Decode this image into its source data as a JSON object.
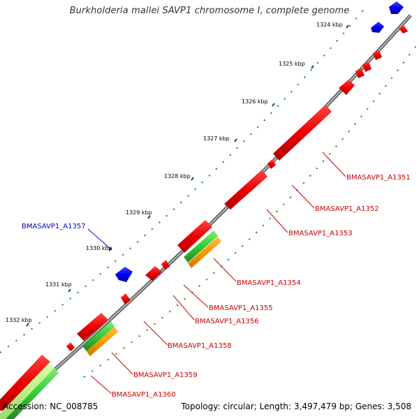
{
  "title": "Burkholderia mallei SAVP1 chromosome I, complete genome",
  "footer": {
    "accession": "Accession: NC_008785",
    "summary": "Topology: circular; Length: 3,497,479 bp; Genes: 3,508"
  },
  "ticks": [
    "1324 kbp",
    "1325 kbp",
    "1326 kbp",
    "1327 kbp",
    "1328 kbp",
    "1329 kbp",
    "1330 kbp",
    "1331 kbp",
    "1332 kbp"
  ],
  "gene_labels": [
    {
      "name": "BMASAVP1_A1351",
      "strand": "reverse"
    },
    {
      "name": "BMASAVP1_A1352",
      "strand": "reverse"
    },
    {
      "name": "BMASAVP1_A1353",
      "strand": "reverse"
    },
    {
      "name": "BMASAVP1_A1354",
      "strand": "reverse"
    },
    {
      "name": "BMASAVP1_A1355",
      "strand": "reverse"
    },
    {
      "name": "BMASAVP1_A1356",
      "strand": "reverse"
    },
    {
      "name": "BMASAVP1_A1357",
      "strand": "forward"
    },
    {
      "name": "BMASAVP1_A1358",
      "strand": "reverse"
    },
    {
      "name": "BMASAVP1_A1359",
      "strand": "reverse"
    },
    {
      "name": "BMASAVP1_A1360",
      "strand": "reverse"
    }
  ],
  "colors": {
    "forward_cds": "#0000ee",
    "reverse_cds": "#ee0000",
    "rna_green": "#33cc33",
    "rna_orange": "#ff9900",
    "backbone": "#888888",
    "ticks_minor": "#006600",
    "label_reverse": "#cc0000",
    "label_forward": "#0000cc"
  }
}
